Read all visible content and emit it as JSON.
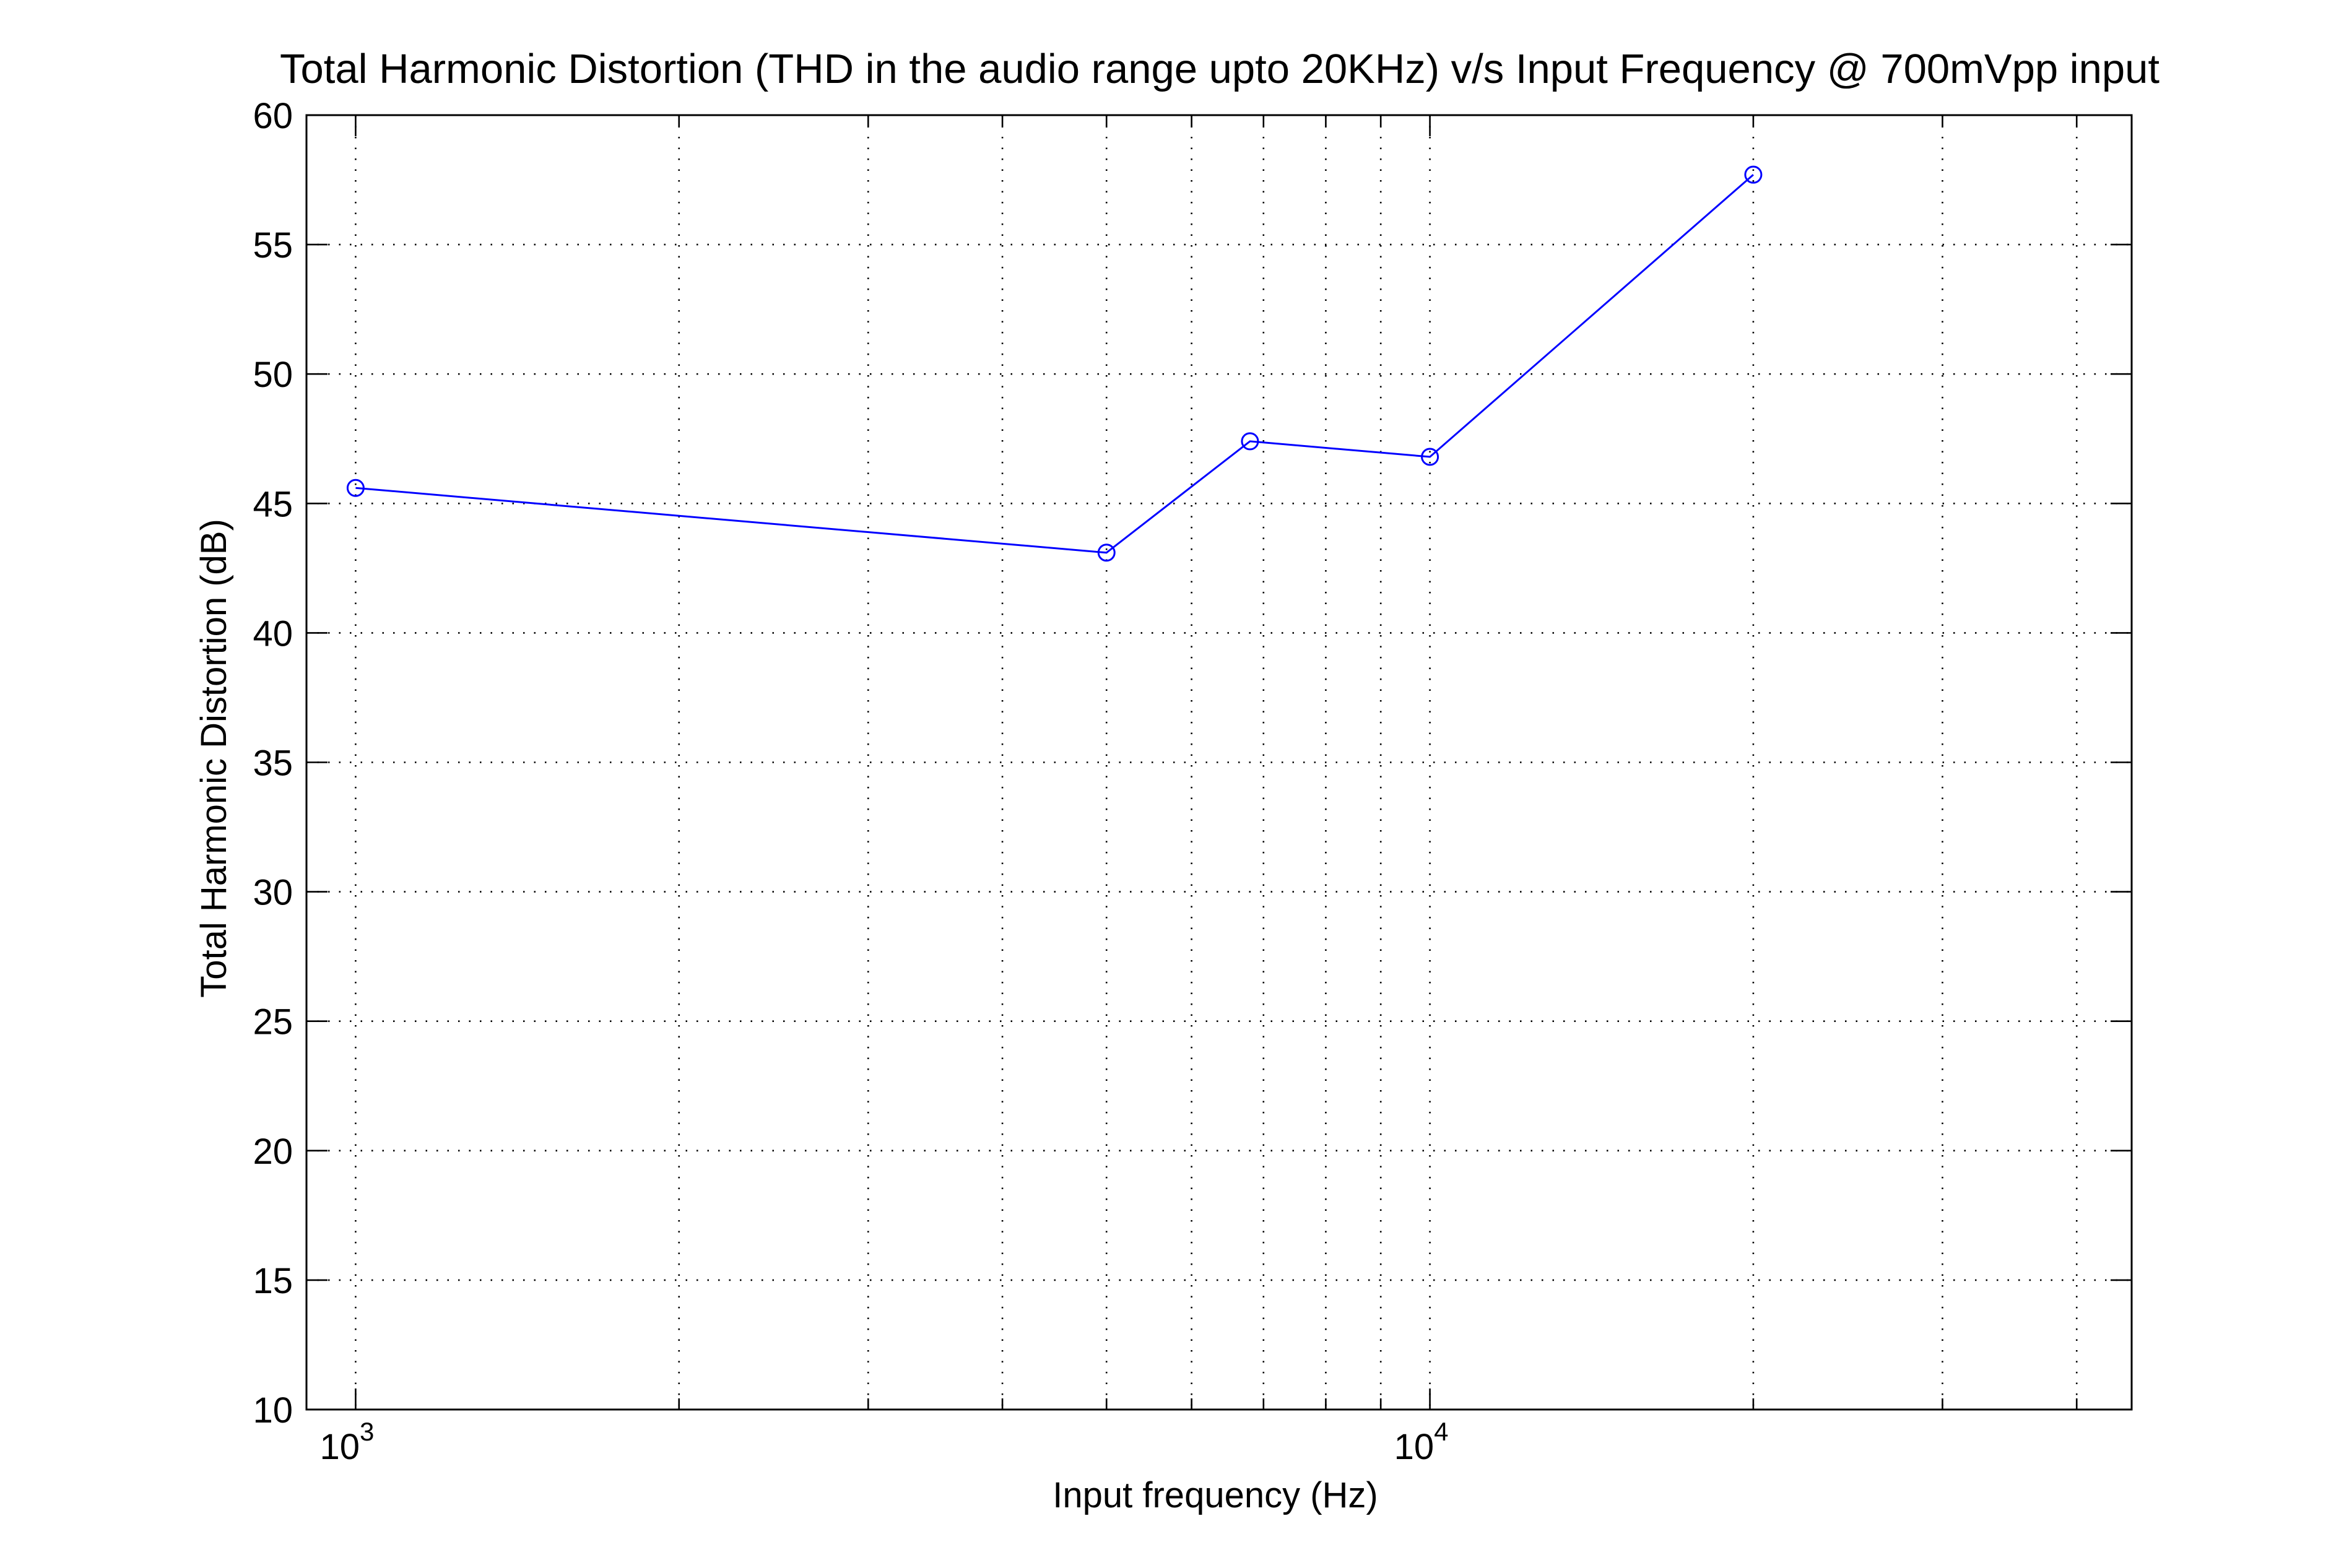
{
  "chart_data": {
    "type": "line",
    "title": "Total Harmonic Distortion (THD in the audio range upto 20KHz) v/s Input Frequency @ 700mVpp input",
    "xlabel": "Input frequency (Hz)",
    "ylabel": "Total Harmonic Distortion (dB)",
    "x_scale": "log",
    "xlim": [
      900,
      45000
    ],
    "ylim": [
      10,
      60
    ],
    "x_tick_labels": [
      {
        "base": "10",
        "exp": "3",
        "value": 1000
      },
      {
        "base": "10",
        "exp": "4",
        "value": 10000
      }
    ],
    "y_ticks": [
      10,
      15,
      20,
      25,
      30,
      35,
      40,
      45,
      50,
      55,
      60
    ],
    "grid": true,
    "grid_style": "dotted",
    "marker": "circle",
    "color": "#0000ff",
    "series": [
      {
        "x": [
          1000,
          5000,
          6800,
          10000,
          20000
        ],
        "y": [
          45.6,
          43.1,
          47.4,
          46.8,
          57.7
        ]
      }
    ]
  }
}
